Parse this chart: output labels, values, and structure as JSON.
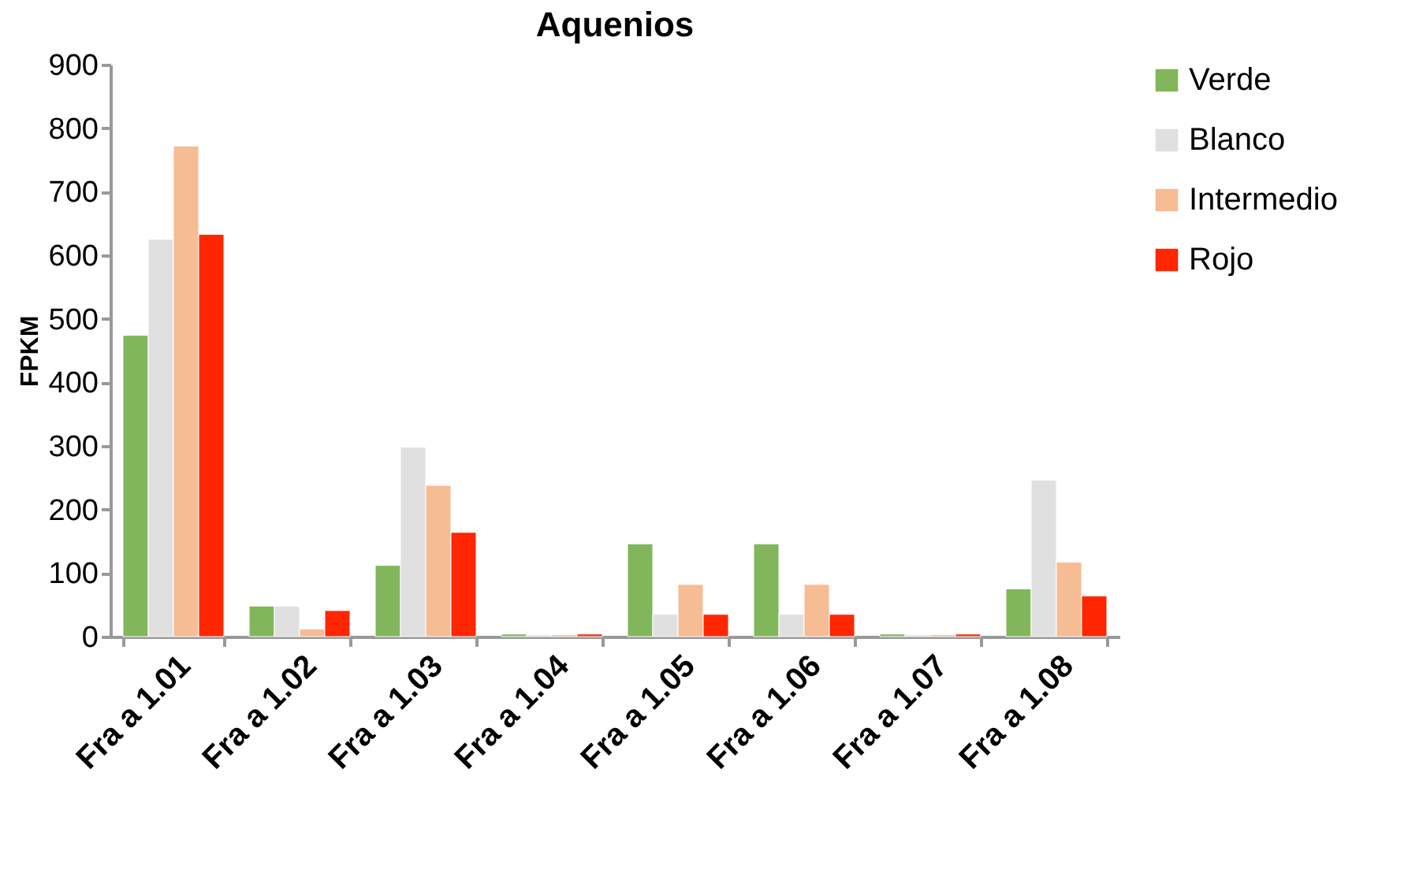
{
  "chart_data": {
    "type": "bar",
    "title": "Aquenios",
    "ylabel": "FPKM",
    "categories": [
      "Fra a 1.01",
      "Fra a 1.02",
      "Fra a 1.03",
      "Fra a 1.04",
      "Fra a 1.05",
      "Fra a 1.06",
      "Fra a 1.07",
      "Fra a 1.08"
    ],
    "series": [
      {
        "name": "Verde",
        "color": "#82b65a",
        "values": [
          474,
          48,
          112,
          4,
          146,
          146,
          4,
          75
        ]
      },
      {
        "name": "Blanco",
        "color": "#e0e0e0",
        "values": [
          625,
          48,
          298,
          3,
          35,
          35,
          3,
          246
        ]
      },
      {
        "name": "Intermedio",
        "color": "#f6bc94",
        "values": [
          772,
          12,
          238,
          3,
          82,
          82,
          3,
          117
        ]
      },
      {
        "name": "Rojo",
        "color": "#ff2600",
        "values": [
          633,
          41,
          164,
          4,
          35,
          35,
          4,
          64
        ]
      }
    ],
    "ylim": [
      0,
      900
    ],
    "yticks": [
      0,
      100,
      200,
      300,
      400,
      500,
      600,
      700,
      800,
      900
    ],
    "grid": false,
    "legend": "right"
  }
}
